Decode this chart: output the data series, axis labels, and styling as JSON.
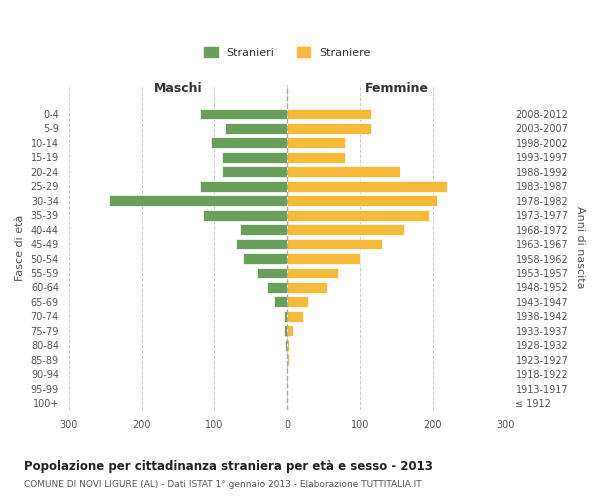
{
  "age_groups": [
    "100+",
    "95-99",
    "90-94",
    "85-89",
    "80-84",
    "75-79",
    "70-74",
    "65-69",
    "60-64",
    "55-59",
    "50-54",
    "45-49",
    "40-44",
    "35-39",
    "30-34",
    "25-29",
    "20-24",
    "15-19",
    "10-14",
    "5-9",
    "0-4"
  ],
  "birth_years": [
    "≤ 1912",
    "1913-1917",
    "1918-1922",
    "1923-1927",
    "1928-1932",
    "1933-1937",
    "1938-1942",
    "1943-1947",
    "1948-1952",
    "1953-1957",
    "1958-1962",
    "1963-1967",
    "1968-1972",
    "1973-1977",
    "1978-1982",
    "1983-1987",
    "1988-1992",
    "1993-1997",
    "1998-2002",
    "2003-2007",
    "2008-2012"
  ],
  "maschi": [
    0,
    0,
    0,
    0,
    3,
    5,
    5,
    18,
    28,
    42,
    60,
    70,
    65,
    115,
    245,
    120,
    90,
    90,
    105,
    85,
    120
  ],
  "femmine": [
    0,
    0,
    0,
    3,
    3,
    8,
    22,
    28,
    55,
    70,
    100,
    130,
    160,
    195,
    205,
    220,
    155,
    80,
    80,
    115,
    115
  ],
  "color_maschi": "#6a9e5b",
  "color_femmine": "#f5ba3a",
  "title": "Popolazione per cittadinanza straniera per età e sesso - 2013",
  "subtitle": "COMUNE DI NOVI LIGURE (AL) - Dati ISTAT 1° gennaio 2013 - Elaborazione TUTTITALIA.IT",
  "ylabel_left": "Fasce di età",
  "ylabel_right": "Anni di nascita",
  "xlabel_left": "Maschi",
  "xlabel_right": "Femmine",
  "legend_maschi": "Stranieri",
  "legend_femmine": "Straniere",
  "xlim": 300,
  "bg_color": "#ffffff",
  "grid_color": "#cccccc",
  "bar_edge_color": "white"
}
